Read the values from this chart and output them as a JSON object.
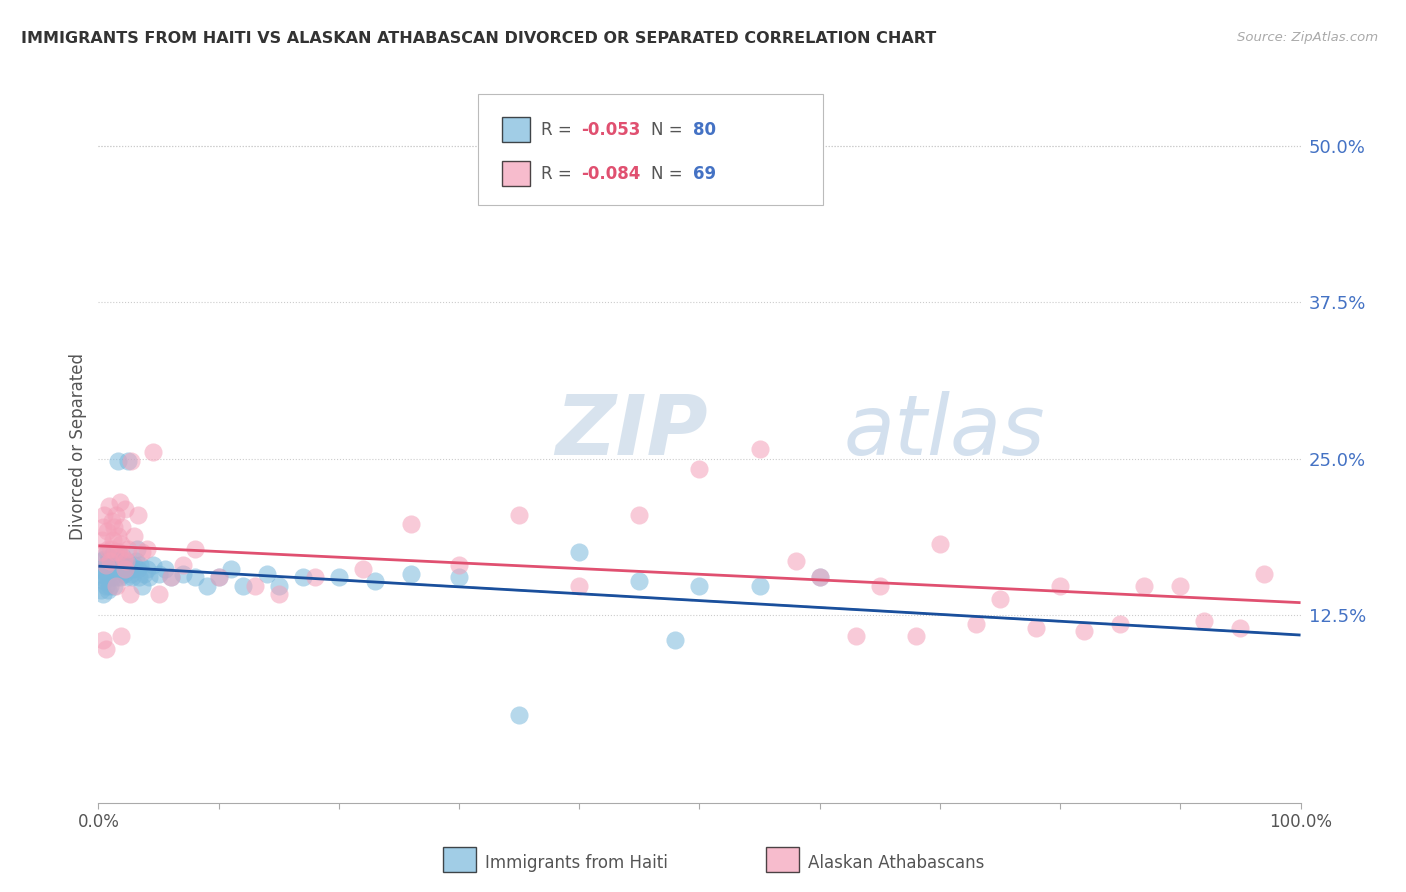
{
  "title": "IMMIGRANTS FROM HAITI VS ALASKAN ATHABASCAN DIVORCED OR SEPARATED CORRELATION CHART",
  "source": "Source: ZipAtlas.com",
  "ylabel": "Divorced or Separated",
  "series1_label": "Immigrants from Haiti",
  "series2_label": "Alaskan Athabascans",
  "r1_text": "-0.053",
  "n1_text": "80",
  "r2_text": "-0.084",
  "n2_text": "69",
  "series1_color": "#7ab8dc",
  "series2_color": "#f4a0b8",
  "trendline1_color": "#1a4f9c",
  "trendline2_color": "#e05070",
  "dashed_color": "#a0c4e8",
  "ytick_vals": [
    0.0,
    0.125,
    0.25,
    0.375,
    0.5
  ],
  "ytick_labels": [
    "",
    "12.5%",
    "25.0%",
    "37.5%",
    "50.0%"
  ],
  "ylim_min": -0.025,
  "ylim_max": 0.545,
  "xlim_min": 0,
  "xlim_max": 100,
  "haiti_x": [
    0.1,
    0.2,
    0.2,
    0.3,
    0.3,
    0.4,
    0.4,
    0.5,
    0.5,
    0.6,
    0.6,
    0.7,
    0.7,
    0.8,
    0.8,
    0.9,
    0.9,
    1.0,
    1.0,
    1.1,
    1.1,
    1.2,
    1.2,
    1.3,
    1.3,
    1.4,
    1.4,
    1.5,
    1.5,
    1.6,
    1.6,
    1.7,
    1.8,
    1.8,
    1.9,
    2.0,
    2.0,
    2.1,
    2.2,
    2.3,
    2.4,
    2.5,
    2.6,
    2.7,
    2.8,
    2.9,
    3.0,
    3.1,
    3.2,
    3.3,
    3.4,
    3.5,
    3.6,
    3.8,
    4.0,
    4.2,
    4.5,
    5.0,
    5.5,
    6.0,
    7.0,
    8.0,
    9.0,
    10.0,
    11.0,
    12.0,
    14.0,
    15.0,
    17.0,
    20.0,
    23.0,
    26.0,
    30.0,
    35.0,
    40.0,
    45.0,
    48.0,
    50.0,
    55.0,
    60.0
  ],
  "haiti_y": [
    0.158,
    0.162,
    0.145,
    0.155,
    0.168,
    0.16,
    0.142,
    0.17,
    0.152,
    0.165,
    0.148,
    0.175,
    0.155,
    0.162,
    0.145,
    0.17,
    0.158,
    0.165,
    0.148,
    0.172,
    0.155,
    0.168,
    0.162,
    0.175,
    0.148,
    0.162,
    0.165,
    0.17,
    0.155,
    0.175,
    0.248,
    0.162,
    0.168,
    0.155,
    0.165,
    0.16,
    0.172,
    0.158,
    0.165,
    0.168,
    0.155,
    0.248,
    0.162,
    0.158,
    0.155,
    0.162,
    0.165,
    0.168,
    0.178,
    0.162,
    0.155,
    0.165,
    0.148,
    0.158,
    0.162,
    0.155,
    0.165,
    0.158,
    0.162,
    0.155,
    0.158,
    0.155,
    0.148,
    0.155,
    0.162,
    0.148,
    0.158,
    0.148,
    0.155,
    0.155,
    0.152,
    0.158,
    0.155,
    0.045,
    0.175,
    0.152,
    0.105,
    0.148,
    0.148,
    0.155
  ],
  "alaska_x": [
    0.2,
    0.3,
    0.4,
    0.5,
    0.6,
    0.7,
    0.8,
    0.9,
    1.0,
    1.1,
    1.2,
    1.3,
    1.4,
    1.5,
    1.6,
    1.7,
    1.8,
    1.9,
    2.0,
    2.1,
    2.2,
    2.3,
    2.5,
    2.7,
    3.0,
    3.3,
    3.6,
    4.0,
    4.5,
    5.0,
    6.0,
    7.0,
    8.0,
    10.0,
    13.0,
    15.0,
    18.0,
    22.0,
    26.0,
    30.0,
    35.0,
    40.0,
    45.0,
    50.0,
    55.0,
    58.0,
    60.0,
    63.0,
    65.0,
    68.0,
    70.0,
    73.0,
    75.0,
    78.0,
    80.0,
    82.0,
    85.0,
    87.0,
    90.0,
    92.0,
    95.0,
    97.0,
    0.35,
    0.65,
    1.05,
    1.45,
    1.85,
    2.25,
    2.65
  ],
  "alaska_y": [
    0.175,
    0.185,
    0.195,
    0.205,
    0.165,
    0.192,
    0.178,
    0.212,
    0.168,
    0.2,
    0.185,
    0.195,
    0.175,
    0.205,
    0.188,
    0.175,
    0.215,
    0.182,
    0.195,
    0.17,
    0.21,
    0.168,
    0.178,
    0.248,
    0.188,
    0.205,
    0.175,
    0.178,
    0.255,
    0.142,
    0.155,
    0.165,
    0.178,
    0.155,
    0.148,
    0.142,
    0.155,
    0.162,
    0.198,
    0.165,
    0.205,
    0.148,
    0.205,
    0.242,
    0.258,
    0.168,
    0.155,
    0.108,
    0.148,
    0.108,
    0.182,
    0.118,
    0.138,
    0.115,
    0.148,
    0.112,
    0.118,
    0.148,
    0.148,
    0.12,
    0.115,
    0.158,
    0.105,
    0.098,
    0.178,
    0.148,
    0.108,
    0.162,
    0.142
  ]
}
